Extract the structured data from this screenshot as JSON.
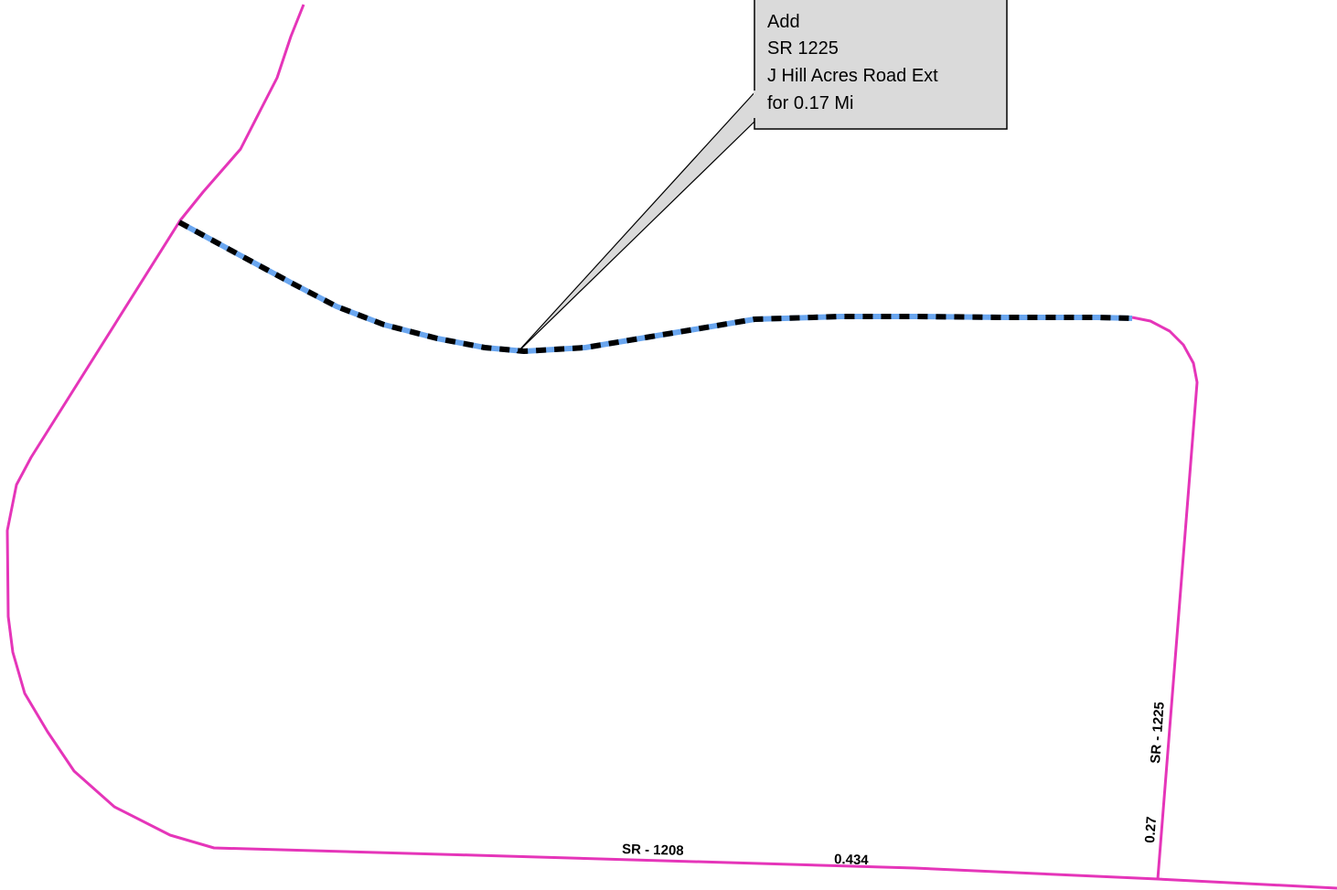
{
  "map": {
    "callout": {
      "lines": [
        "Add",
        "SR 1225",
        "J Hill Acres Road Ext",
        "for 0.17 Mi"
      ]
    },
    "labels": {
      "sr1208": "SR - 1208",
      "sr1208_length": "0.434",
      "sr1225": "SR - 1225",
      "sr1225_length": "0.27"
    },
    "colors": {
      "existing_road": "#e535b9",
      "new_road_fill": "#6aa6ef",
      "new_road_dash": "#000000",
      "callout_fill": "#dadada",
      "callout_border": "#000000"
    }
  }
}
